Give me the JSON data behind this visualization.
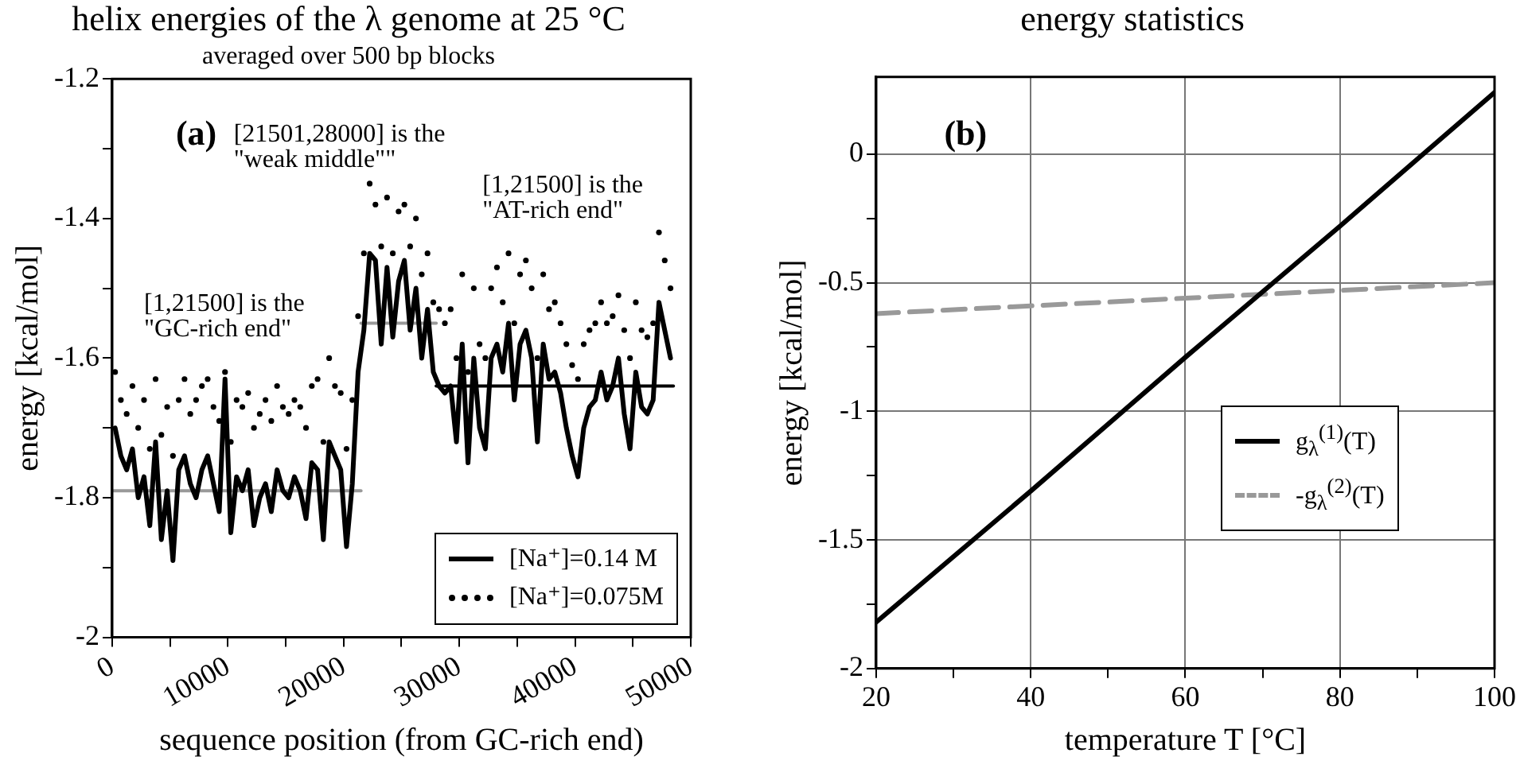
{
  "chart_data": [
    {
      "type": "line",
      "title": "helix energies of the λ genome at 25 °C",
      "subtitle": "averaged over 500 bp blocks",
      "xlabel": "sequence position (from GC-rich end)",
      "ylabel": "energy [kcal/mol]",
      "xlim": [
        0,
        50000
      ],
      "xticks": [
        0,
        {
          "value": 5000,
          "label": null
        },
        10000,
        {
          "value": 15000,
          "label": null
        },
        20000,
        {
          "value": 25000,
          "label": null
        },
        30000,
        {
          "value": 35000,
          "label": null
        },
        40000,
        {
          "value": 45000,
          "label": null
        },
        50000
      ],
      "ylim": [
        -2,
        -1.2
      ],
      "yticks": [
        {
          "value": -2,
          "label": "-2"
        },
        {
          "value": -1.9,
          "label": null
        },
        {
          "value": -1.8,
          "label": "-1.8"
        },
        {
          "value": -1.7,
          "label": null
        },
        {
          "value": -1.6,
          "label": "-1.6"
        },
        {
          "value": -1.5,
          "label": null
        },
        {
          "value": -1.4,
          "label": "-1.4"
        },
        {
          "value": -1.3,
          "label": null
        },
        {
          "value": -1.2,
          "label": "-1.2"
        }
      ],
      "grid": false,
      "legend": "bottom right",
      "annotations": [
        "(a)",
        "[21501,28000] is the\n\"weak middle\"\"",
        "[1,21500] is the\n\"AT-rich end\"",
        "[1,21500] is the\n\"GC-rich end\""
      ],
      "series": [
        {
          "name": "[Na⁺]=0.14 M",
          "color": "#000000",
          "marker": "none",
          "line_style": "solid",
          "x": [
            250,
            750,
            1250,
            1750,
            2250,
            2750,
            3250,
            3750,
            4250,
            4750,
            5250,
            5750,
            6250,
            6750,
            7250,
            7750,
            8250,
            8750,
            9250,
            9750,
            10250,
            10750,
            11250,
            11750,
            12250,
            12750,
            13250,
            13750,
            14250,
            14750,
            15250,
            15750,
            16250,
            16750,
            17250,
            17750,
            18250,
            18750,
            19250,
            19750,
            20250,
            20750,
            21250,
            21750,
            22250,
            22750,
            23250,
            23750,
            24250,
            24750,
            25250,
            25750,
            26250,
            26750,
            27250,
            27750,
            28250,
            28750,
            29250,
            29750,
            30250,
            30750,
            31250,
            31750,
            32250,
            32750,
            33250,
            33750,
            34250,
            34750,
            35250,
            35750,
            36250,
            36750,
            37250,
            37750,
            38250,
            38750,
            39250,
            39750,
            40250,
            40750,
            41250,
            41750,
            42250,
            42750,
            43250,
            43750,
            44250,
            44750,
            45250,
            45750,
            46250,
            46750,
            47250,
            47750,
            48250
          ],
          "values": [
            -1.7,
            -1.74,
            -1.76,
            -1.73,
            -1.8,
            -1.77,
            -1.84,
            -1.72,
            -1.86,
            -1.79,
            -1.89,
            -1.76,
            -1.74,
            -1.78,
            -1.8,
            -1.76,
            -1.74,
            -1.78,
            -1.82,
            -1.63,
            -1.85,
            -1.77,
            -1.79,
            -1.76,
            -1.84,
            -1.8,
            -1.78,
            -1.82,
            -1.76,
            -1.79,
            -1.8,
            -1.77,
            -1.79,
            -1.83,
            -1.75,
            -1.76,
            -1.86,
            -1.72,
            -1.74,
            -1.76,
            -1.87,
            -1.78,
            -1.62,
            -1.56,
            -1.45,
            -1.46,
            -1.58,
            -1.47,
            -1.57,
            -1.49,
            -1.46,
            -1.56,
            -1.5,
            -1.6,
            -1.53,
            -1.62,
            -1.64,
            -1.65,
            -1.64,
            -1.72,
            -1.58,
            -1.75,
            -1.6,
            -1.7,
            -1.73,
            -1.6,
            -1.58,
            -1.62,
            -1.55,
            -1.66,
            -1.58,
            -1.56,
            -1.6,
            -1.72,
            -1.58,
            -1.63,
            -1.62,
            -1.65,
            -1.7,
            -1.74,
            -1.77,
            -1.7,
            -1.67,
            -1.66,
            -1.62,
            -1.66,
            -1.64,
            -1.6,
            -1.68,
            -1.73,
            -1.62,
            -1.67,
            -1.68,
            -1.66,
            -1.52,
            -1.56,
            -1.6
          ]
        },
        {
          "name": "[Na⁺]=0.075M",
          "color": "#000000",
          "type": "scatter",
          "marker": "circle",
          "x": [
            250,
            750,
            1250,
            1750,
            2250,
            2750,
            3250,
            3750,
            4250,
            4750,
            5250,
            5750,
            6250,
            6750,
            7250,
            7750,
            8250,
            8750,
            9250,
            9750,
            10250,
            10750,
            11250,
            11750,
            12250,
            12750,
            13250,
            13750,
            14250,
            14750,
            15250,
            15750,
            16250,
            16750,
            17250,
            17750,
            18250,
            18750,
            19250,
            19750,
            20250,
            20750,
            21250,
            21750,
            22250,
            22750,
            23250,
            23750,
            24250,
            24750,
            25250,
            25750,
            26250,
            26750,
            27250,
            27750,
            28250,
            28750,
            29250,
            29750,
            30250,
            30750,
            31250,
            31750,
            32250,
            32750,
            33250,
            33750,
            34250,
            34750,
            35250,
            35750,
            36250,
            36750,
            37250,
            37750,
            38250,
            38750,
            39250,
            39750,
            40250,
            40750,
            41250,
            41750,
            42250,
            42750,
            43250,
            43750,
            44250,
            44750,
            45250,
            45750,
            46250,
            46750,
            47250,
            47750,
            48250
          ],
          "values": [
            -1.62,
            -1.66,
            -1.68,
            -1.64,
            -1.7,
            -1.66,
            -1.73,
            -1.63,
            -1.71,
            -1.67,
            -1.74,
            -1.66,
            -1.63,
            -1.68,
            -1.66,
            -1.64,
            -1.63,
            -1.67,
            -1.69,
            -1.62,
            -1.72,
            -1.66,
            -1.67,
            -1.65,
            -1.7,
            -1.68,
            -1.66,
            -1.69,
            -1.64,
            -1.67,
            -1.68,
            -1.66,
            -1.67,
            -1.7,
            -1.64,
            -1.63,
            -1.72,
            -1.6,
            -1.64,
            -1.65,
            -1.73,
            -1.66,
            -1.54,
            -1.45,
            -1.35,
            -1.38,
            -1.44,
            -1.37,
            -1.45,
            -1.39,
            -1.38,
            -1.44,
            -1.4,
            -1.48,
            -1.45,
            -1.52,
            -1.53,
            -1.55,
            -1.53,
            -1.6,
            -1.48,
            -1.62,
            -1.5,
            -1.58,
            -1.6,
            -1.5,
            -1.47,
            -1.52,
            -1.45,
            -1.55,
            -1.48,
            -1.46,
            -1.5,
            -1.6,
            -1.48,
            -1.53,
            -1.52,
            -1.55,
            -1.58,
            -1.61,
            -1.63,
            -1.58,
            -1.56,
            -1.55,
            -1.52,
            -1.55,
            -1.54,
            -1.51,
            -1.56,
            -1.6,
            -1.52,
            -1.56,
            -1.57,
            -1.55,
            -1.42,
            -1.46,
            -1.5
          ]
        },
        {
          "color": "#999999",
          "marker": "none",
          "line_style": "solid",
          "x": [
            0,
            21500
          ],
          "values": [
            -1.79,
            -1.79
          ]
        },
        {
          "color": "#999999",
          "marker": "none",
          "line_style": "solid",
          "x": [
            21500,
            28000
          ],
          "values": [
            -1.55,
            -1.55
          ]
        },
        {
          "color": "#000000",
          "marker": "none",
          "line_style": "solid",
          "x": [
            28000,
            48500
          ],
          "values": [
            -1.64,
            -1.64
          ]
        }
      ]
    },
    {
      "type": "line",
      "title": "energy statistics",
      "xlabel": "temperature T [°C]",
      "ylabel": "energy [kcal/mol]",
      "xlim": [
        20,
        100
      ],
      "xticks": [
        20,
        {
          "value": 30,
          "label": null
        },
        40,
        {
          "value": 50,
          "label": null
        },
        60,
        {
          "value": 70,
          "label": null
        },
        80,
        {
          "value": 90,
          "label": null
        },
        100
      ],
      "ylim": [
        -2,
        0.3
      ],
      "yticks": [
        -2,
        {
          "value": -1.75,
          "label": null
        },
        -1.5,
        {
          "value": -1.25,
          "label": null
        },
        -1,
        {
          "value": -0.75,
          "label": null
        },
        -0.5,
        {
          "value": -0.25,
          "label": null
        },
        0
      ],
      "grid": true,
      "legend": "right",
      "annotations": [
        "(b)"
      ],
      "series": [
        {
          "name": "g$_{λ}$$^{(1)}$(T)",
          "color": "#000000",
          "marker": "none",
          "line_style": "solid",
          "x": [
            20,
            40,
            60,
            80,
            90,
            100
          ],
          "values": [
            -1.82,
            -1.31,
            -0.79,
            -0.28,
            -0.02,
            0.24
          ]
        },
        {
          "name": "-g$_{λ}$$^{(2)}$(T)",
          "color": "#999999",
          "marker": "none",
          "line_style": "dashed",
          "x": [
            20,
            40,
            60,
            80,
            100
          ],
          "values": [
            -0.62,
            -0.59,
            -0.56,
            -0.53,
            -0.5
          ]
        }
      ]
    }
  ]
}
